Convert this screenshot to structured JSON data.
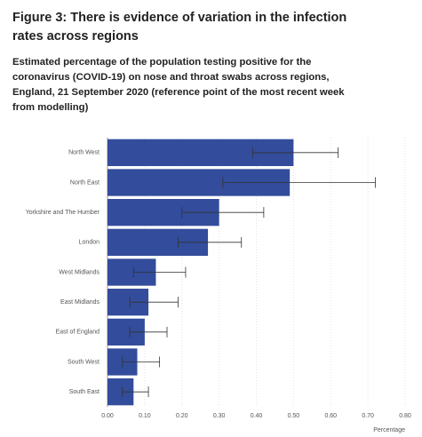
{
  "chart_data": {
    "type": "hbar",
    "title": "Figure 3: There is evidence of variation in the infection rates across regions",
    "subtitle": "Estimated percentage of the population testing positive for the coronavirus (COVID-19) on nose and throat swabs across regions, England, 21 September 2020 (reference point of the most recent week from modelling)",
    "x_label": "Percentage",
    "categories": [
      "North West",
      "North East",
      "Yorkshire and The Humber",
      "London",
      "West Midlands",
      "East Midlands",
      "East of England",
      "South West",
      "South East"
    ],
    "series": [
      {
        "color": "#334c9b",
        "values": [
          0.5,
          0.49,
          0.3,
          0.27,
          0.13,
          0.11,
          0.1,
          0.08,
          0.07
        ],
        "lower": [
          0.39,
          0.31,
          0.2,
          0.19,
          0.07,
          0.06,
          0.06,
          0.04,
          0.04
        ],
        "upper": [
          0.62,
          0.72,
          0.42,
          0.36,
          0.21,
          0.19,
          0.16,
          0.14,
          0.11
        ]
      }
    ],
    "xlim": [
      0,
      0.8
    ],
    "xticks": [
      {
        "value": 0,
        "label": "0.00"
      },
      {
        "value": 0.1,
        "label": "0.10"
      },
      {
        "value": 0.2,
        "label": "0.20"
      },
      {
        "value": 0.3,
        "label": "0.30"
      },
      {
        "value": 0.4,
        "label": "0.40"
      },
      {
        "value": 0.5,
        "label": "0.50"
      },
      {
        "value": 0.6,
        "label": "0.60"
      },
      {
        "value": 0.7,
        "label": "0.70"
      },
      {
        "value": 0.8,
        "label": "0.80"
      }
    ],
    "grid": true
  }
}
